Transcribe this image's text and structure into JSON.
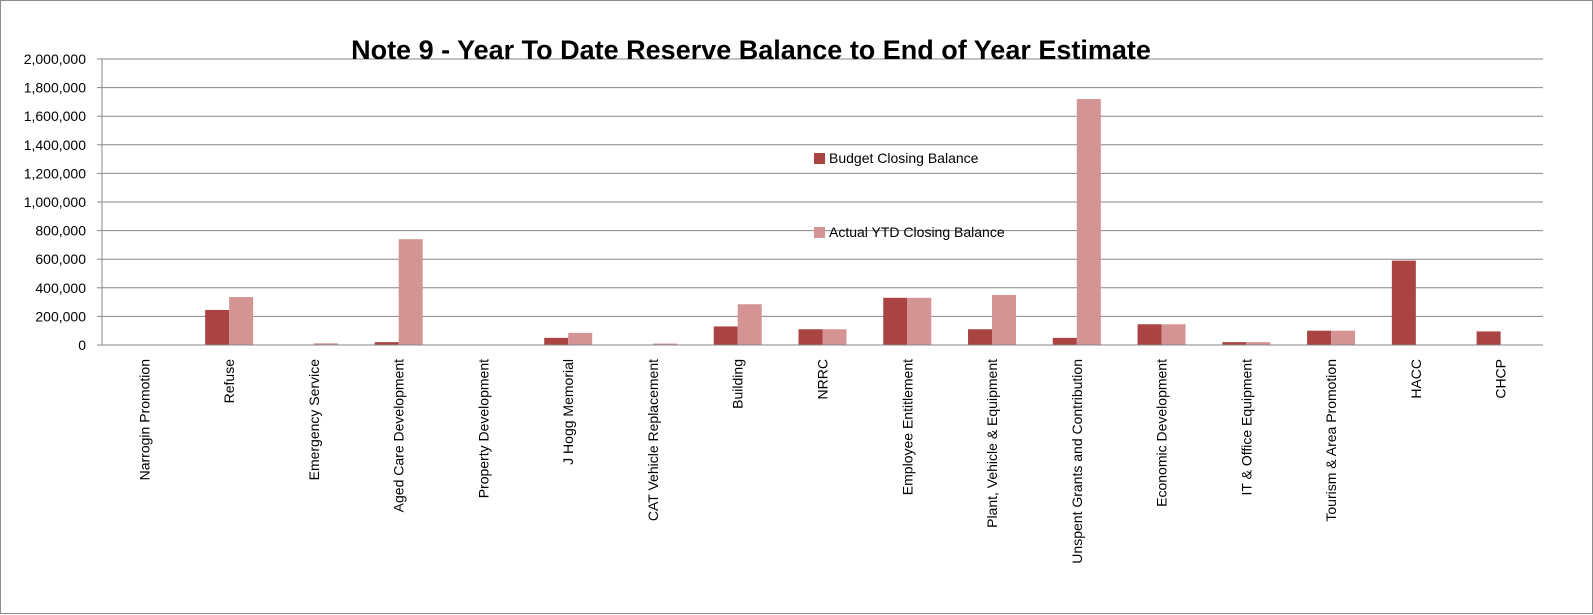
{
  "colors": {
    "budget": "#a94442",
    "actual": "#d49494",
    "grid": "#868686",
    "axis": "#868686"
  },
  "chart_data": {
    "type": "bar",
    "title": "Note 9 - Year To Date Reserve Balance to End of Year Estimate",
    "xlabel": "",
    "ylabel": "",
    "ylim": [
      0,
      2000000
    ],
    "yticks": [
      0,
      200000,
      400000,
      600000,
      800000,
      1000000,
      1200000,
      1400000,
      1600000,
      1800000,
      2000000
    ],
    "ytick_labels": [
      "0",
      "200,000",
      "400,000",
      "600,000",
      "800,000",
      "1,000,000",
      "1,200,000",
      "1,400,000",
      "1,600,000",
      "1,800,000",
      "2,000,000"
    ],
    "grid": true,
    "legend_position": "center-right",
    "categories": [
      "Narrogin Promotion",
      "Refuse",
      "Emergency Service",
      "Aged Care Development",
      "Property Development",
      "J Hogg Memorial",
      "CAT Vehicle Replacement",
      "Building",
      "NRRC",
      "Employee Entitlement",
      "Plant, Vehicle & Equipment",
      "Unspent Grants and Contribution",
      "Economic Development",
      "IT & Office Equipment",
      "Tourism & Area Promotion",
      "HACC",
      "CHCP"
    ],
    "series": [
      {
        "name": "Budget Closing Balance",
        "values": [
          0,
          245000,
          0,
          20000,
          0,
          50000,
          0,
          130000,
          110000,
          330000,
          110000,
          50000,
          145000,
          20000,
          100000,
          590000,
          95000
        ]
      },
      {
        "name": "Actual YTD Closing Balance",
        "values": [
          0,
          335000,
          12000,
          740000,
          0,
          85000,
          10000,
          285000,
          110000,
          330000,
          350000,
          1720000,
          145000,
          20000,
          100000,
          0,
          0
        ]
      }
    ]
  }
}
